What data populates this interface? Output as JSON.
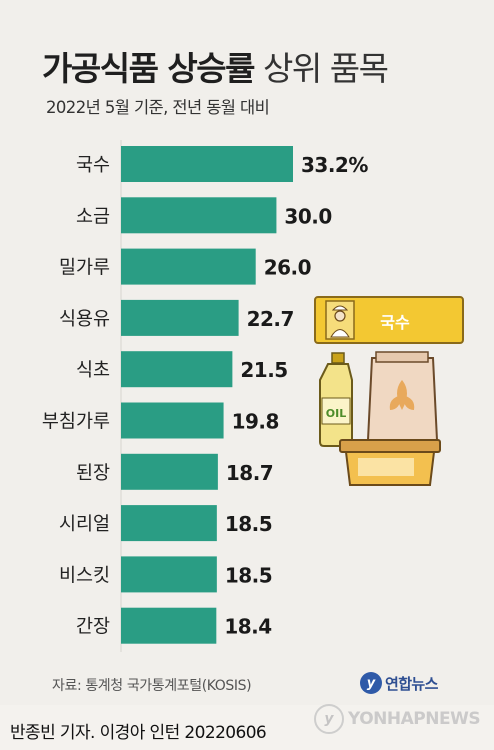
{
  "title_bold": "가공식품 상승률",
  "title_light": "상위 품목",
  "subtitle": "2022년 5월 기준, 전년 동월 대비",
  "bar_color": "#2a9d84",
  "chart_data": {
    "type": "bar",
    "orientation": "horizontal",
    "title": "가공식품 상승률 상위 품목",
    "subtitle": "2022년 5월 기준, 전년 동월 대비",
    "categories": [
      "국수",
      "소금",
      "밀가루",
      "식용유",
      "식초",
      "부침가루",
      "된장",
      "시리얼",
      "비스킷",
      "간장"
    ],
    "values": [
      33.2,
      30.0,
      26.0,
      22.7,
      21.5,
      19.8,
      18.7,
      18.5,
      18.5,
      18.4
    ],
    "value_labels": [
      "33.2%",
      "30.0",
      "26.0",
      "22.7",
      "21.5",
      "19.8",
      "18.7",
      "18.5",
      "18.5",
      "18.4"
    ],
    "xlim": [
      0,
      34
    ]
  },
  "illustration": {
    "noodle_label": "국수",
    "oil_label": "OIL"
  },
  "source": "자료: 통계청 국가통계포털(KOSIS)",
  "logo_text": "연합뉴스",
  "credit": "반종빈 기자. 이경아 인턴  20220606",
  "watermark": "YONHAPNEWS"
}
